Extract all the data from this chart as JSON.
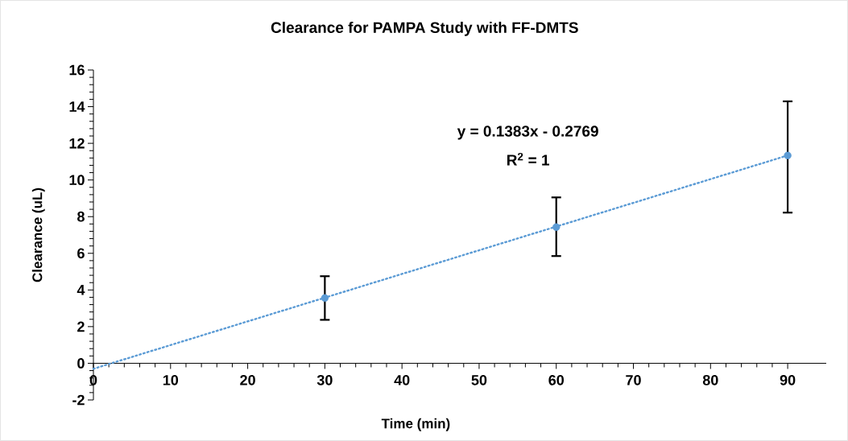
{
  "chart_data": {
    "type": "scatter",
    "title": "Clearance for PAMPA Study with FF-DMTS",
    "xlabel": "Time (min)",
    "ylabel": "Clearance (uL)",
    "xlim": [
      0,
      95
    ],
    "ylim": [
      -2,
      16
    ],
    "xticks": [
      0,
      10,
      20,
      30,
      40,
      50,
      60,
      70,
      80,
      90
    ],
    "yticks": [
      -2,
      0,
      2,
      4,
      6,
      8,
      10,
      12,
      14,
      16
    ],
    "annotations": [
      "y = 0.1383x - 0.2769",
      "R$^{2}$ = 1"
    ],
    "grid": false,
    "series": [
      {
        "color": "#5b9bd5",
        "marker": "circle",
        "x": [
          30,
          60,
          90
        ],
        "values": [
          3.56,
          7.43,
          11.34
        ],
        "errors": [
          [
            2.37,
            4.75
          ],
          [
            5.85,
            9.05
          ],
          [
            8.22,
            14.29
          ]
        ]
      },
      {
        "type": "line",
        "color": "#5b9bd5",
        "marker": "none",
        "line_style": "dotted",
        "x": [
          0,
          90
        ],
        "values": [
          -0.3,
          11.34
        ]
      }
    ]
  }
}
